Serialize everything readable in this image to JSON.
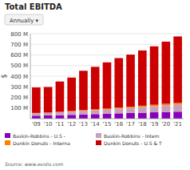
{
  "chart_data": {
    "type": "bar",
    "stacked": true,
    "title": "Total EBITDA",
    "categories": [
      "'09",
      "'10",
      "'11",
      "'12",
      "'13",
      "'14",
      "'15",
      "'16",
      "'17",
      "'18",
      "'19",
      "'20",
      "'21"
    ],
    "series": [
      {
        "name": "Baskin-Robbins - U.S -",
        "color": "#8800BB",
        "values": [
          28,
          30,
          33,
          36,
          40,
          43,
          46,
          50,
          53,
          56,
          60,
          63,
          66
        ]
      },
      {
        "name": "Baskin-Robbins - Intern",
        "color": "#C8A0BC",
        "values": [
          22,
          24,
          27,
          30,
          34,
          37,
          40,
          45,
          49,
          54,
          58,
          63,
          68
        ]
      },
      {
        "name": "Dunkin Donuts - Interna",
        "color": "#FF8000",
        "values": [
          4,
          4,
          5,
          6,
          7,
          8,
          9,
          10,
          11,
          12,
          13,
          14,
          15
        ]
      },
      {
        "name": "Dunkin Donuts - U.S & T",
        "color": "#CC0000",
        "values": [
          240,
          240,
          285,
          315,
          370,
          400,
          435,
          465,
          490,
          520,
          550,
          585,
          625
        ]
      }
    ],
    "ylabel": "$",
    "ylim": [
      0,
      800
    ],
    "yticks": [
      {
        "value": 100,
        "label": "100 M"
      },
      {
        "value": 200,
        "label": "200 M"
      },
      {
        "value": 300,
        "label": "300 M"
      },
      {
        "value": 400,
        "label": "400 M"
      },
      {
        "value": 500,
        "label": "500 M"
      },
      {
        "value": 600,
        "label": "600 M"
      },
      {
        "value": 700,
        "label": "700 M"
      },
      {
        "value": 800,
        "label": "800 M"
      }
    ],
    "grid": true,
    "legend": "lower left",
    "annotations": [
      "Annually ▾",
      "Source: www.evolis.com"
    ]
  }
}
